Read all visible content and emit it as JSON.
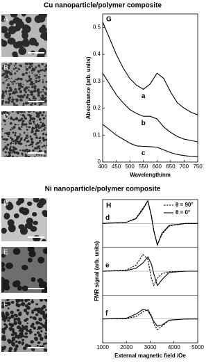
{
  "sections": [
    {
      "title": "Cu nanoparticle/polymer composite",
      "images": [
        "A",
        "B",
        "C"
      ]
    },
    {
      "title": "Ni nanoparticle/polymer composite",
      "images": [
        "D",
        "E",
        "F"
      ]
    }
  ],
  "chart_data": [
    {
      "type": "line",
      "panel_label": "G",
      "x": [
        400,
        425,
        450,
        475,
        500,
        525,
        550,
        575,
        600,
        625,
        650,
        675,
        700,
        725,
        750
      ],
      "series": [
        {
          "name": "a",
          "color": "#000000",
          "values": [
            0.52,
            0.46,
            0.4,
            0.35,
            0.31,
            0.285,
            0.27,
            0.29,
            0.33,
            0.31,
            0.26,
            0.22,
            0.2,
            0.185,
            0.175
          ]
        },
        {
          "name": "b",
          "color": "#000000",
          "values": [
            0.33,
            0.29,
            0.25,
            0.22,
            0.195,
            0.18,
            0.17,
            0.17,
            0.16,
            0.13,
            0.11,
            0.095,
            0.085,
            0.08,
            0.075
          ]
        },
        {
          "name": "c",
          "color": "#000000",
          "values": [
            0.14,
            0.12,
            0.1,
            0.085,
            0.07,
            0.06,
            0.058,
            0.057,
            0.055,
            0.045,
            0.035,
            0.028,
            0.024,
            0.021,
            0.02
          ]
        }
      ],
      "xlim": [
        400,
        750
      ],
      "ylim": [
        0,
        0.55
      ],
      "xticks": [
        400,
        450,
        500,
        550,
        600,
        650,
        700,
        750
      ],
      "yticks": [
        0,
        0.1,
        0.2,
        0.3,
        0.4,
        0.5
      ],
      "xlabel": "Wavelength/nm",
      "ylabel": "Absorbance (arb. units)"
    },
    {
      "type": "stacked-line",
      "panel_label": "H",
      "x": [
        1000,
        2000,
        2400,
        2700,
        2900,
        3050,
        3150,
        3300,
        3500,
        3800,
        4500,
        5000
      ],
      "series": [
        {
          "name": "θ = 90°",
          "style": "dashed",
          "color": "#000000"
        },
        {
          "name": "θ = 0°",
          "style": "solid",
          "color": "#000000"
        }
      ],
      "panels": [
        {
          "label": "d",
          "values": [
            [
              0,
              0.05,
              0.22,
              0.65,
              0.95,
              0.35,
              -0.25,
              -0.9,
              -0.45,
              -0.1,
              0,
              0
            ],
            [
              0,
              0.05,
              0.2,
              0.6,
              0.95,
              0.3,
              -0.3,
              -0.9,
              -0.4,
              -0.08,
              0,
              0
            ]
          ]
        },
        {
          "label": "e",
          "values": [
            [
              0,
              0.05,
              0.25,
              0.7,
              0.5,
              -0.3,
              -0.6,
              -0.3,
              -0.1,
              -0.02,
              0,
              0
            ],
            [
              0,
              0.03,
              0.12,
              0.35,
              0.6,
              0.3,
              -0.1,
              -0.6,
              -0.35,
              -0.05,
              0,
              0
            ]
          ]
        },
        {
          "label": "f",
          "values": [
            [
              0,
              0.02,
              0.1,
              0.3,
              0.4,
              0.15,
              -0.2,
              -0.45,
              -0.3,
              -0.05,
              0,
              0
            ],
            [
              0,
              0.03,
              0.2,
              0.4,
              0.35,
              0.1,
              -0.1,
              -0.3,
              -0.25,
              -0.05,
              0,
              0
            ]
          ]
        }
      ],
      "xlim": [
        1000,
        5000
      ],
      "ylim": [
        -1,
        1
      ],
      "xticks": [
        1000,
        2000,
        3000,
        4000,
        5000
      ],
      "xlabel": "External magnetic field /Oe",
      "ylabel": "FMR signal (arb. units)"
    }
  ]
}
